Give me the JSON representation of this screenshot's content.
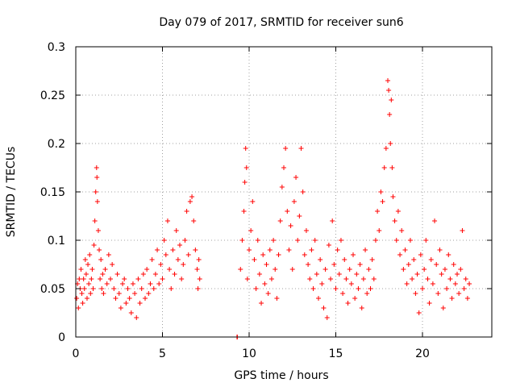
{
  "chart_data": {
    "type": "scatter",
    "title": "Day 079 of 2017, SRMTID for receiver sun6",
    "xlabel": "GPS time / hours",
    "ylabel": "SRMTID / TECUs",
    "xlim": [
      0,
      24
    ],
    "ylim": [
      0,
      0.3
    ],
    "xticks": [
      0,
      5,
      10,
      15,
      20
    ],
    "xtick_labels": [
      "0",
      "5",
      "10",
      "15",
      "20"
    ],
    "yticks": [
      0,
      0.05,
      0.1,
      0.15,
      0.2,
      0.25,
      0.3
    ],
    "ytick_labels": [
      "0",
      "0.05",
      "0.1",
      "0.15",
      "0.2",
      "0.25",
      "0.3"
    ],
    "grid": true,
    "marker": "+",
    "color": "#ff0000",
    "series": [
      {
        "name": "SRMTID",
        "points": [
          [
            0.05,
            0.04
          ],
          [
            0.1,
            0.055
          ],
          [
            0.15,
            0.03
          ],
          [
            0.2,
            0.06
          ],
          [
            0.25,
            0.05
          ],
          [
            0.3,
            0.07
          ],
          [
            0.35,
            0.045
          ],
          [
            0.4,
            0.035
          ],
          [
            0.45,
            0.06
          ],
          [
            0.5,
            0.05
          ],
          [
            0.55,
            0.08
          ],
          [
            0.6,
            0.065
          ],
          [
            0.65,
            0.04
          ],
          [
            0.7,
            0.075
          ],
          [
            0.75,
            0.055
          ],
          [
            0.8,
            0.085
          ],
          [
            0.85,
            0.045
          ],
          [
            0.9,
            0.06
          ],
          [
            0.95,
            0.07
          ],
          [
            1.0,
            0.05
          ],
          [
            1.05,
            0.095
          ],
          [
            1.1,
            0.12
          ],
          [
            1.15,
            0.15
          ],
          [
            1.2,
            0.175
          ],
          [
            1.22,
            0.165
          ],
          [
            1.25,
            0.14
          ],
          [
            1.3,
            0.11
          ],
          [
            1.35,
            0.09
          ],
          [
            1.4,
            0.06
          ],
          [
            1.45,
            0.08
          ],
          [
            1.5,
            0.05
          ],
          [
            1.55,
            0.065
          ],
          [
            1.6,
            0.045
          ],
          [
            1.7,
            0.07
          ],
          [
            1.8,
            0.055
          ],
          [
            1.9,
            0.085
          ],
          [
            2.0,
            0.06
          ],
          [
            2.1,
            0.075
          ],
          [
            2.2,
            0.05
          ],
          [
            2.3,
            0.04
          ],
          [
            2.4,
            0.065
          ],
          [
            2.5,
            0.045
          ],
          [
            2.6,
            0.03
          ],
          [
            2.7,
            0.055
          ],
          [
            2.8,
            0.06
          ],
          [
            2.9,
            0.035
          ],
          [
            3.0,
            0.05
          ],
          [
            3.1,
            0.04
          ],
          [
            3.2,
            0.025
          ],
          [
            3.3,
            0.055
          ],
          [
            3.4,
            0.045
          ],
          [
            3.5,
            0.02
          ],
          [
            3.6,
            0.06
          ],
          [
            3.7,
            0.035
          ],
          [
            3.8,
            0.05
          ],
          [
            3.9,
            0.065
          ],
          [
            4.0,
            0.04
          ],
          [
            4.1,
            0.07
          ],
          [
            4.2,
            0.045
          ],
          [
            4.3,
            0.055
          ],
          [
            4.4,
            0.08
          ],
          [
            4.5,
            0.05
          ],
          [
            4.6,
            0.065
          ],
          [
            4.7,
            0.09
          ],
          [
            4.8,
            0.055
          ],
          [
            4.9,
            0.075
          ],
          [
            5.0,
            0.06
          ],
          [
            5.1,
            0.1
          ],
          [
            5.2,
            0.085
          ],
          [
            5.3,
            0.12
          ],
          [
            5.4,
            0.07
          ],
          [
            5.5,
            0.05
          ],
          [
            5.6,
            0.09
          ],
          [
            5.7,
            0.065
          ],
          [
            5.8,
            0.11
          ],
          [
            5.9,
            0.08
          ],
          [
            6.0,
            0.095
          ],
          [
            6.1,
            0.06
          ],
          [
            6.2,
            0.075
          ],
          [
            6.3,
            0.1
          ],
          [
            6.4,
            0.13
          ],
          [
            6.5,
            0.085
          ],
          [
            6.6,
            0.14
          ],
          [
            6.7,
            0.145
          ],
          [
            6.8,
            0.12
          ],
          [
            6.9,
            0.09
          ],
          [
            7.0,
            0.07
          ],
          [
            7.05,
            0.05
          ],
          [
            7.1,
            0.08
          ],
          [
            7.15,
            0.06
          ],
          [
            9.3,
            0.0
          ],
          [
            9.32,
            0.0
          ],
          [
            9.5,
            0.07
          ],
          [
            9.6,
            0.1
          ],
          [
            9.7,
            0.13
          ],
          [
            9.75,
            0.16
          ],
          [
            9.8,
            0.195
          ],
          [
            9.85,
            0.175
          ],
          [
            9.9,
            0.06
          ],
          [
            10.0,
            0.09
          ],
          [
            10.1,
            0.11
          ],
          [
            10.2,
            0.14
          ],
          [
            10.3,
            0.08
          ],
          [
            10.4,
            0.05
          ],
          [
            10.5,
            0.1
          ],
          [
            10.6,
            0.065
          ],
          [
            10.7,
            0.035
          ],
          [
            10.8,
            0.085
          ],
          [
            10.9,
            0.055
          ],
          [
            11.0,
            0.075
          ],
          [
            11.1,
            0.045
          ],
          [
            11.2,
            0.09
          ],
          [
            11.3,
            0.06
          ],
          [
            11.4,
            0.1
          ],
          [
            11.5,
            0.07
          ],
          [
            11.6,
            0.04
          ],
          [
            11.7,
            0.085
          ],
          [
            11.8,
            0.12
          ],
          [
            11.9,
            0.155
          ],
          [
            12.0,
            0.175
          ],
          [
            12.1,
            0.195
          ],
          [
            12.2,
            0.13
          ],
          [
            12.3,
            0.09
          ],
          [
            12.4,
            0.115
          ],
          [
            12.5,
            0.07
          ],
          [
            12.6,
            0.14
          ],
          [
            12.7,
            0.165
          ],
          [
            12.8,
            0.1
          ],
          [
            12.9,
            0.125
          ],
          [
            13.0,
            0.195
          ],
          [
            13.1,
            0.15
          ],
          [
            13.2,
            0.085
          ],
          [
            13.3,
            0.11
          ],
          [
            13.4,
            0.075
          ],
          [
            13.5,
            0.06
          ],
          [
            13.6,
            0.09
          ],
          [
            13.7,
            0.05
          ],
          [
            13.8,
            0.1
          ],
          [
            13.9,
            0.065
          ],
          [
            14.0,
            0.04
          ],
          [
            14.1,
            0.08
          ],
          [
            14.2,
            0.055
          ],
          [
            14.3,
            0.03
          ],
          [
            14.4,
            0.07
          ],
          [
            14.5,
            0.02
          ],
          [
            14.6,
            0.095
          ],
          [
            14.7,
            0.06
          ],
          [
            14.8,
            0.12
          ],
          [
            14.9,
            0.075
          ],
          [
            15.0,
            0.05
          ],
          [
            15.1,
            0.09
          ],
          [
            15.2,
            0.065
          ],
          [
            15.3,
            0.1
          ],
          [
            15.4,
            0.045
          ],
          [
            15.5,
            0.08
          ],
          [
            15.6,
            0.06
          ],
          [
            15.7,
            0.035
          ],
          [
            15.8,
            0.07
          ],
          [
            15.9,
            0.055
          ],
          [
            16.0,
            0.085
          ],
          [
            16.1,
            0.04
          ],
          [
            16.2,
            0.065
          ],
          [
            16.3,
            0.05
          ],
          [
            16.4,
            0.075
          ],
          [
            16.5,
            0.03
          ],
          [
            16.6,
            0.06
          ],
          [
            16.7,
            0.09
          ],
          [
            16.8,
            0.045
          ],
          [
            16.9,
            0.07
          ],
          [
            17.0,
            0.05
          ],
          [
            17.1,
            0.08
          ],
          [
            17.2,
            0.06
          ],
          [
            17.3,
            0.1
          ],
          [
            17.4,
            0.13
          ],
          [
            17.5,
            0.11
          ],
          [
            17.6,
            0.15
          ],
          [
            17.7,
            0.14
          ],
          [
            17.8,
            0.175
          ],
          [
            17.9,
            0.195
          ],
          [
            18.0,
            0.265
          ],
          [
            18.05,
            0.255
          ],
          [
            18.1,
            0.23
          ],
          [
            18.15,
            0.2
          ],
          [
            18.2,
            0.245
          ],
          [
            18.25,
            0.175
          ],
          [
            18.3,
            0.145
          ],
          [
            18.4,
            0.12
          ],
          [
            18.5,
            0.1
          ],
          [
            18.6,
            0.13
          ],
          [
            18.7,
            0.085
          ],
          [
            18.8,
            0.11
          ],
          [
            18.9,
            0.07
          ],
          [
            19.0,
            0.09
          ],
          [
            19.1,
            0.055
          ],
          [
            19.2,
            0.075
          ],
          [
            19.3,
            0.1
          ],
          [
            19.4,
            0.06
          ],
          [
            19.5,
            0.08
          ],
          [
            19.6,
            0.045
          ],
          [
            19.7,
            0.065
          ],
          [
            19.8,
            0.025
          ],
          [
            19.9,
            0.085
          ],
          [
            20.0,
            0.05
          ],
          [
            20.1,
            0.07
          ],
          [
            20.2,
            0.1
          ],
          [
            20.3,
            0.06
          ],
          [
            20.4,
            0.035
          ],
          [
            20.5,
            0.08
          ],
          [
            20.6,
            0.055
          ],
          [
            20.7,
            0.12
          ],
          [
            20.8,
            0.075
          ],
          [
            20.9,
            0.045
          ],
          [
            21.0,
            0.09
          ],
          [
            21.1,
            0.065
          ],
          [
            21.2,
            0.03
          ],
          [
            21.3,
            0.07
          ],
          [
            21.4,
            0.05
          ],
          [
            21.5,
            0.085
          ],
          [
            21.6,
            0.06
          ],
          [
            21.7,
            0.04
          ],
          [
            21.8,
            0.075
          ],
          [
            21.9,
            0.055
          ],
          [
            22.0,
            0.065
          ],
          [
            22.1,
            0.045
          ],
          [
            22.2,
            0.07
          ],
          [
            22.3,
            0.11
          ],
          [
            22.4,
            0.05
          ],
          [
            22.5,
            0.06
          ],
          [
            22.6,
            0.04
          ],
          [
            22.7,
            0.055
          ]
        ]
      }
    ]
  }
}
